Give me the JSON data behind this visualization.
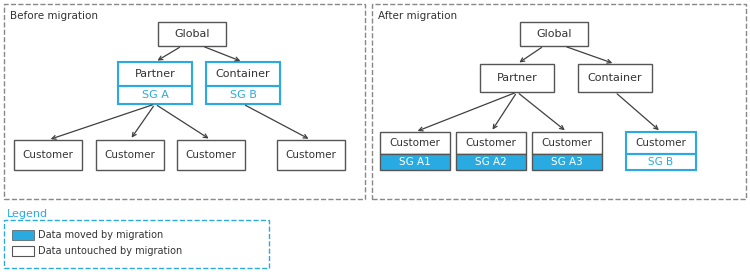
{
  "blue": "#29ABE2",
  "box_edge": "#555555",
  "dashed_border": "#808080",
  "blue_dashed": "#29ABE2",
  "bg": "#ffffff",
  "text_color": "#333333",
  "before_title": "Before migration",
  "after_title": "After migration",
  "legend_title": "Legend",
  "legend_moved": "Data moved by migration",
  "legend_untouched": "Data untouched by migration",
  "fig_width": 7.5,
  "fig_height": 2.72
}
